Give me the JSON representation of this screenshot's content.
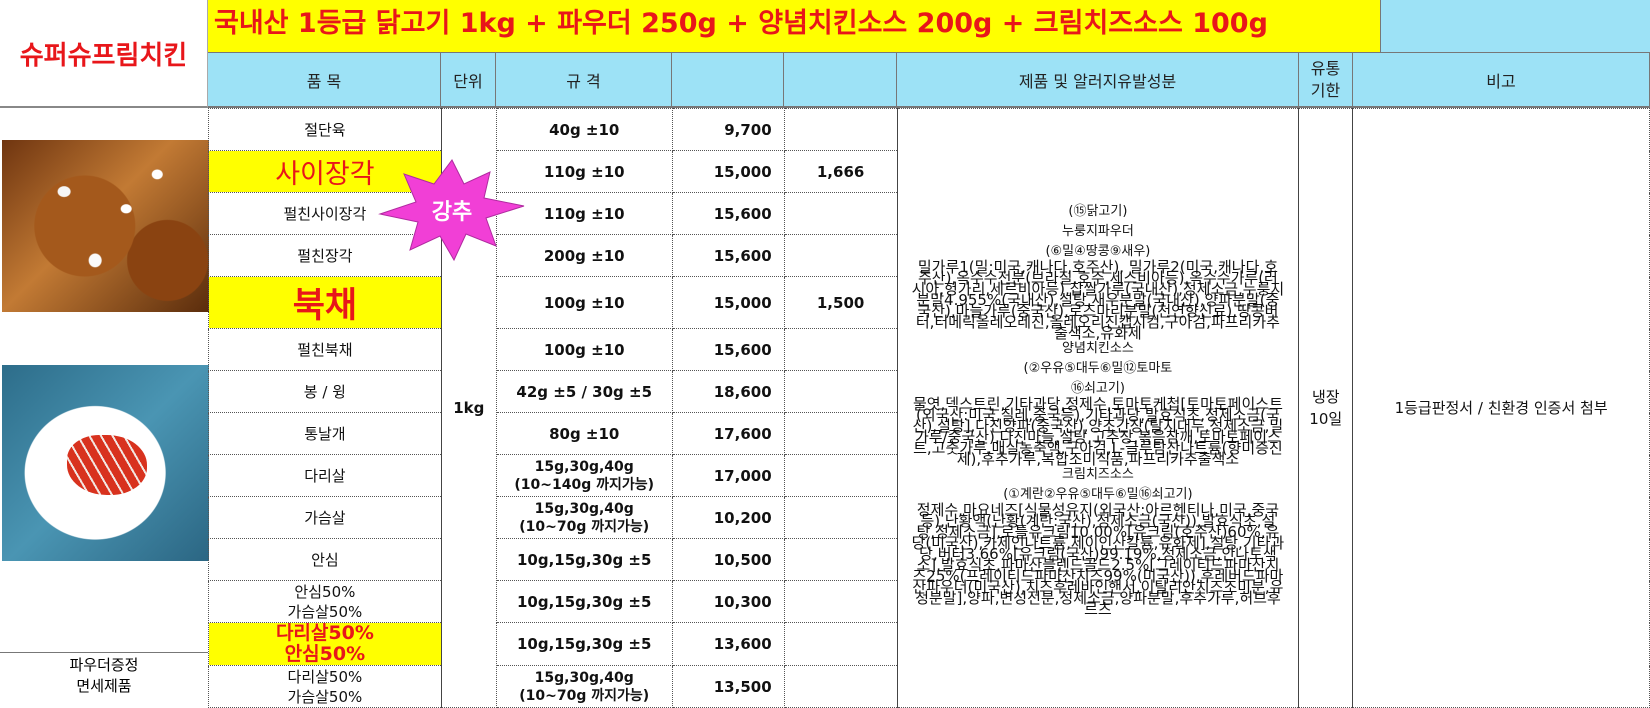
{
  "brand": "슈퍼슈프림치킨",
  "banner": "국내산 1등급 닭고기 1kg + 파우더 250g + 양념치킨소스 200g + 크림치즈소스 100g",
  "headers": {
    "item": "품    목",
    "unit": "단위",
    "spec": "규    격",
    "info": "제품 및 알러지유발성분",
    "expiry_l1": "유통",
    "expiry_l2": "기한",
    "remarks": "비고"
  },
  "badge": "강추",
  "footer_l1": "파우더증정",
  "footer_l2": "면세제품",
  "unit": "1kg",
  "expiry_l1": "냉장",
  "expiry_l2": "10일",
  "remarks": "1등급판정서 / 친환경 인증서 첨부",
  "rows": [
    {
      "name": "절단육",
      "spec": "40g ±10",
      "price": "9,700",
      "unit_price": ""
    },
    {
      "name": "사이장각",
      "spec": "110g ±10",
      "price": "15,000",
      "unit_price": "1,666"
    },
    {
      "name": "펄친사이장각",
      "spec": "110g ±10",
      "price": "15,600",
      "unit_price": ""
    },
    {
      "name": "펄친장각",
      "spec": "200g ±10",
      "price": "15,600",
      "unit_price": ""
    },
    {
      "name": "북채",
      "spec": "100g ±10",
      "price": "15,000",
      "unit_price": "1,500"
    },
    {
      "name": "펄친북채",
      "spec": "100g ±10",
      "price": "15,600",
      "unit_price": ""
    },
    {
      "name": "봉 / 윙",
      "spec": "42g ±5 / 30g ±5",
      "price": "18,600",
      "unit_price": ""
    },
    {
      "name": "통날개",
      "spec": "80g ±10",
      "price": "17,600",
      "unit_price": ""
    },
    {
      "name": "다리살",
      "spec_l1": "15g,30g,40g",
      "spec_l2": "(10~140g 까지가능)",
      "price": "17,000",
      "unit_price": ""
    },
    {
      "name": "가슴살",
      "spec_l1": "15g,30g,40g",
      "spec_l2": "(10~70g 까지가능)",
      "price": "10,200",
      "unit_price": ""
    },
    {
      "name": "안심",
      "spec": "10g,15g,30g ±5",
      "price": "10,500",
      "unit_price": ""
    },
    {
      "name_l1": "안심50%",
      "name_l2": "가슴살50%",
      "spec": "10g,15g,30g ±5",
      "price": "10,300",
      "unit_price": ""
    },
    {
      "name_l1": "다리살50%",
      "name_l2": "안심50%",
      "spec": "10g,15g,30g ±5",
      "price": "13,600",
      "unit_price": ""
    },
    {
      "name_l1": "다리살50%",
      "name_l2": "가슴살50%",
      "spec_l1": "15g,30g,40g",
      "spec_l2": "(10~70g 까지가능)",
      "price": "13,500",
      "unit_price": ""
    }
  ],
  "info": {
    "h1": "(⑮닭고기)",
    "h2": "누룽지파우더",
    "h3": "(⑥밀④땅콩⑨새우)",
    "p1": "밀가루1(밀:미국,캐나다,호주산), 밀가루2(미국,캐나다,호주산),옥수수전분(브라질,호주,세스비아등),옥수수가루(러시아,헝가리,세르비아등),찹쌀가루(국내산),정제소금,누룽지분말4.955%(국내산),설탕,새우분말(국내산),양파분말(중국산),마늘가루(중국산),로즈마리분말(천연향신료),땅콩버터,터메릭올레오레진,올레오리진캡시컴,구아검,파프리카추출색소,유화제",
    "h4": "양념치킨소스",
    "h5": "(②우유⑤대두⑥밀⑫토마토",
    "h6": "⑯쇠고기)",
    "p2": "물엿,덱스트린,기타과당,정제수,토마토케첩[토마토페이스트(외국산:미국,칠레,중국등),기타과당,발효식초,정제소금(국산),설탕],다진양파(중국산),양조간장(탈지대두,정제소금,밀가루/중국산),다진마늘,설탕,고추장,볶음참깨,토마토페이스트,고춧가루,매실농축액,구아검,L-글루탐산나트륨(향미증진제),후추가루,복합조미식품,파프리카추출색소",
    "h7": "크림치즈소스",
    "h8": "(①계란②우유⑤대두⑥밀⑯쇠고기)",
    "p3": "정제수,마요네즈[식물성유지(외국산:아르헨티나,미국,중국등),난황액(난황(계란:국산),정제소금(국산)),발효식초,설탕,정제소금],로틀유크림10.00%[유크림(호주산)60%,유당(미국산),카제인나트륨,제이인산칼륨,유화제],설탕,기타과당,버터3.66%[유크림(국산)99.19%,정제소금,안나토색소],발효식초,파마산블렌드골드2.5%[그레이티드파마산치즈25%(프레이티드파마산치즈99%(미국산)),후레버드파마산파우더(미국산),치즈후레바인핸서,이탈리안치즈조미분,유청분말],양파,변성전분,정제소금,양파분말,후추가루,허브후르츠"
  }
}
